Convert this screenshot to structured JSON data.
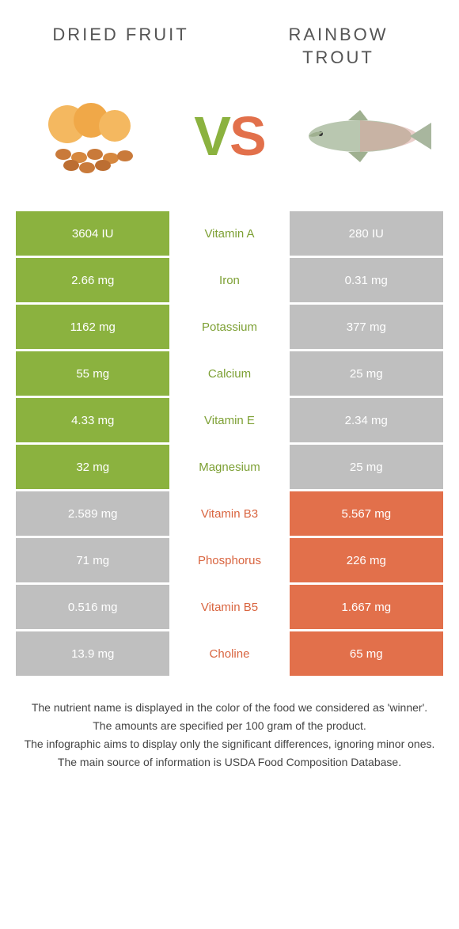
{
  "left_title": "DRIED FRUIT",
  "right_title": "RAINBOW TROUT",
  "colors": {
    "green": "#8bb23f",
    "orange": "#e2704b",
    "green_text": "#7da034",
    "orange_text": "#d96540",
    "lose_bg": "#bfbfbf"
  },
  "rows": [
    {
      "nutrient": "Vitamin A",
      "left": "3604 IU",
      "right": "280 IU",
      "winner": "left"
    },
    {
      "nutrient": "Iron",
      "left": "2.66 mg",
      "right": "0.31 mg",
      "winner": "left"
    },
    {
      "nutrient": "Potassium",
      "left": "1162 mg",
      "right": "377 mg",
      "winner": "left"
    },
    {
      "nutrient": "Calcium",
      "left": "55 mg",
      "right": "25 mg",
      "winner": "left"
    },
    {
      "nutrient": "Vitamin E",
      "left": "4.33 mg",
      "right": "2.34 mg",
      "winner": "left"
    },
    {
      "nutrient": "Magnesium",
      "left": "32 mg",
      "right": "25 mg",
      "winner": "left"
    },
    {
      "nutrient": "Vitamin B3",
      "left": "2.589 mg",
      "right": "5.567 mg",
      "winner": "right"
    },
    {
      "nutrient": "Phosphorus",
      "left": "71 mg",
      "right": "226 mg",
      "winner": "right"
    },
    {
      "nutrient": "Vitamin B5",
      "left": "0.516 mg",
      "right": "1.667 mg",
      "winner": "right"
    },
    {
      "nutrient": "Choline",
      "left": "13.9 mg",
      "right": "65 mg",
      "winner": "right"
    }
  ],
  "footer": [
    "The nutrient name is displayed in the color of the food we considered as 'winner'.",
    "The amounts are specified per 100 gram of the product.",
    "The infographic aims to display only the significant differences, ignoring minor ones.",
    "The main source of information is USDA Food Composition Database."
  ]
}
